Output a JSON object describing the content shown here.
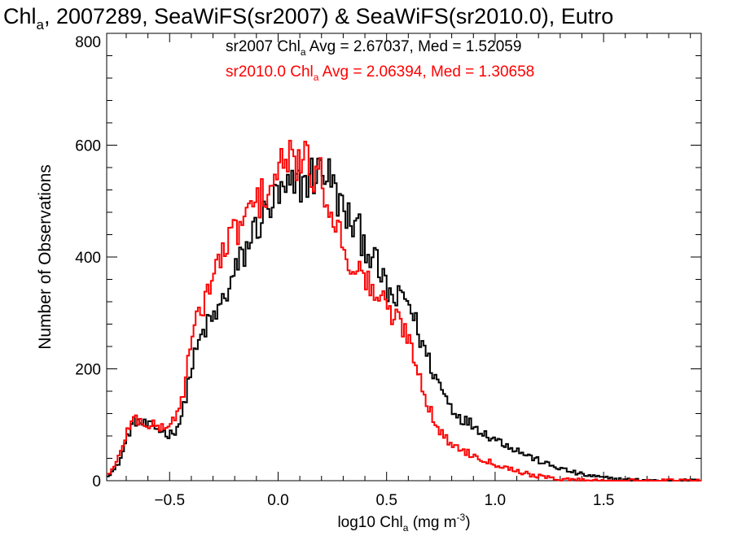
{
  "chart_data": {
    "type": "line",
    "title": {
      "pre": "Chl",
      "sub": "a",
      "post": ", 2007289, SeaWiFS(sr2007) & SeaWiFS(sr2010.0), Eutro"
    },
    "xlabel": {
      "pre": "log10 Chl",
      "sub": "a",
      "mid": " (mg m",
      "sup": "-3",
      "post": ")"
    },
    "ylabel": "Number of Observations",
    "xlim": [
      -0.79,
      1.95
    ],
    "ylim": [
      0,
      800
    ],
    "x_ticks": [
      {
        "value": -0.5,
        "label": "−0.5"
      },
      {
        "value": 0.0,
        "label": "0.0"
      },
      {
        "value": 0.5,
        "label": "0.5"
      },
      {
        "value": 1.0,
        "label": "1.0"
      },
      {
        "value": 1.5,
        "label": "1.5"
      }
    ],
    "y_ticks": [
      {
        "value": 0,
        "label": "0"
      },
      {
        "value": 200,
        "label": "200"
      },
      {
        "value": 400,
        "label": "400"
      },
      {
        "value": 600,
        "label": "600"
      },
      {
        "value": 800,
        "label": "800"
      }
    ],
    "grid": false,
    "legend": [
      {
        "color": "#000000",
        "pre": "sr2007 Chl",
        "sub": "a",
        "post": " Avg = 2.67037, Med = 1.52059"
      },
      {
        "color": "#ff0000",
        "pre": "sr2010.0 Chl",
        "sub": "a",
        "post": " Avg = 2.06394, Med = 1.30658"
      }
    ],
    "series_control_points": [
      {
        "color": "#000000",
        "x": [
          -0.79,
          -0.75,
          -0.72,
          -0.69,
          -0.66,
          -0.63,
          -0.6,
          -0.57,
          -0.53,
          -0.5,
          -0.47,
          -0.44,
          -0.42,
          -0.4,
          -0.37,
          -0.34,
          -0.31,
          -0.28,
          -0.25,
          -0.22,
          -0.19,
          -0.15,
          -0.12,
          -0.09,
          -0.05,
          -0.02,
          0.02,
          0.06,
          0.1,
          0.14,
          0.18,
          0.22,
          0.26,
          0.3,
          0.34,
          0.38,
          0.42,
          0.46,
          0.5,
          0.54,
          0.58,
          0.6,
          0.62,
          0.65,
          0.69,
          0.72,
          0.76,
          0.8,
          0.85,
          0.9,
          0.95,
          1.0,
          1.05,
          1.1,
          1.15,
          1.2,
          1.25,
          1.3,
          1.35,
          1.4,
          1.45,
          1.5,
          1.55,
          1.6,
          1.65,
          1.7,
          1.75,
          1.8,
          1.85,
          1.9,
          1.95
        ],
        "y": [
          10,
          20,
          45,
          85,
          108,
          103,
          98,
          95,
          88,
          82,
          93,
          118,
          165,
          200,
          240,
          270,
          285,
          300,
          325,
          350,
          380,
          410,
          440,
          460,
          480,
          500,
          510,
          520,
          530,
          540,
          552,
          558,
          520,
          480,
          460,
          440,
          410,
          380,
          340,
          320,
          330,
          320,
          300,
          260,
          220,
          190,
          160,
          130,
          110,
          100,
          85,
          75,
          65,
          55,
          45,
          36,
          28,
          22,
          16,
          11,
          8,
          5,
          3,
          2,
          1,
          1,
          0,
          0,
          0,
          0,
          0
        ]
      },
      {
        "color": "#ff0000",
        "x": [
          -0.79,
          -0.75,
          -0.72,
          -0.69,
          -0.66,
          -0.63,
          -0.6,
          -0.57,
          -0.53,
          -0.5,
          -0.47,
          -0.44,
          -0.42,
          -0.4,
          -0.37,
          -0.34,
          -0.31,
          -0.28,
          -0.25,
          -0.22,
          -0.19,
          -0.15,
          -0.12,
          -0.09,
          -0.05,
          -0.02,
          0.02,
          0.06,
          0.1,
          0.14,
          0.18,
          0.22,
          0.26,
          0.3,
          0.34,
          0.38,
          0.42,
          0.46,
          0.5,
          0.54,
          0.58,
          0.6,
          0.62,
          0.65,
          0.69,
          0.72,
          0.76,
          0.8,
          0.85,
          0.9,
          0.95,
          1.0,
          1.05,
          1.1,
          1.15,
          1.2,
          1.25,
          1.3,
          1.35,
          1.4,
          1.45,
          1.5,
          1.55,
          1.6,
          1.65,
          1.7,
          1.75,
          1.8,
          1.85,
          1.9,
          1.95
        ],
        "y": [
          10,
          25,
          60,
          95,
          112,
          105,
          100,
          98,
          95,
          100,
          115,
          150,
          200,
          245,
          290,
          325,
          355,
          385,
          410,
          430,
          450,
          470,
          485,
          500,
          520,
          540,
          560,
          575,
          572,
          560,
          548,
          520,
          470,
          420,
          390,
          370,
          350,
          330,
          310,
          290,
          275,
          255,
          235,
          190,
          140,
          105,
          80,
          65,
          55,
          45,
          38,
          30,
          24,
          18,
          12,
          8,
          5,
          3,
          2,
          1,
          1,
          0,
          0,
          0,
          0,
          0,
          0,
          0,
          0,
          0,
          0
        ]
      }
    ]
  }
}
